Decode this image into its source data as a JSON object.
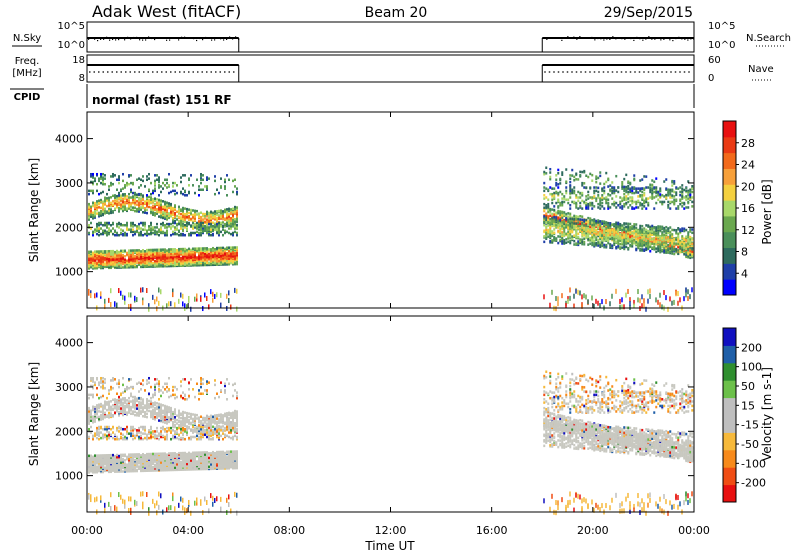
{
  "header": {
    "station": "Adak West (fitACF)",
    "beam": "Beam 20",
    "date": "29/Sep/2015"
  },
  "strips": {
    "nsky": {
      "label": "N.Sky",
      "right_label": "N.Search",
      "ticks": [
        "10^5",
        "10^0"
      ],
      "right_ticks": [
        "10^5",
        "10^0"
      ]
    },
    "freq": {
      "label_1": "Freq.",
      "label_2": "[MHz]",
      "right_label": "Nave",
      "ticks": [
        "18",
        "8"
      ],
      "right_ticks": [
        "60",
        "0"
      ]
    },
    "cpid": {
      "label": "CPID",
      "value": "normal (fast) 151 RF"
    }
  },
  "colors": {
    "power_scale": [
      "#0000ff",
      "#1f3fa8",
      "#2e6b5e",
      "#4a8f5a",
      "#6aa84f",
      "#a8d86a",
      "#f4d03f",
      "#f7a03a",
      "#f26a1b",
      "#ea3a14",
      "#e81010"
    ],
    "velocity_scale": [
      "#e81010",
      "#f04d14",
      "#f78a1b",
      "#f6b93b",
      "#bfbfbf",
      "#bfbfbf",
      "#6cc04a",
      "#2f8f2f",
      "#1f5fa8",
      "#1010c0"
    ],
    "ground_scatter": "#c8c8c0"
  },
  "chart_data": [
    {
      "type": "heatmap",
      "title": "",
      "ylabel": "Slant Range [km]",
      "yticks": [
        "1000",
        "2000",
        "3000",
        "4000"
      ],
      "ylim": [
        180,
        4600
      ],
      "xlim": [
        0,
        24
      ],
      "colorbar": {
        "label": "Power [dB]",
        "ticks": [
          "4",
          "8",
          "12",
          "16",
          "20",
          "24",
          "28"
        ],
        "range": [
          0,
          32
        ]
      },
      "data_windows_hours": [
        [
          0,
          6
        ],
        [
          18,
          24
        ]
      ]
    },
    {
      "type": "heatmap",
      "title": "",
      "ylabel": "Slant Range [km]",
      "yticks": [
        "1000",
        "2000",
        "3000",
        "4000"
      ],
      "ylim": [
        180,
        4600
      ],
      "xlim": [
        0,
        24
      ],
      "colorbar": {
        "label": "Velocity [m s-1]",
        "ticks": [
          "200",
          "100",
          "50",
          "15",
          "-15",
          "-50",
          "-100",
          "-200"
        ]
      },
      "data_windows_hours": [
        [
          0,
          6
        ],
        [
          18,
          24
        ]
      ]
    }
  ],
  "xaxis": {
    "label": "Time UT",
    "ticks": [
      "00:00",
      "04:00",
      "08:00",
      "12:00",
      "16:00",
      "20:00",
      "00:00"
    ]
  }
}
